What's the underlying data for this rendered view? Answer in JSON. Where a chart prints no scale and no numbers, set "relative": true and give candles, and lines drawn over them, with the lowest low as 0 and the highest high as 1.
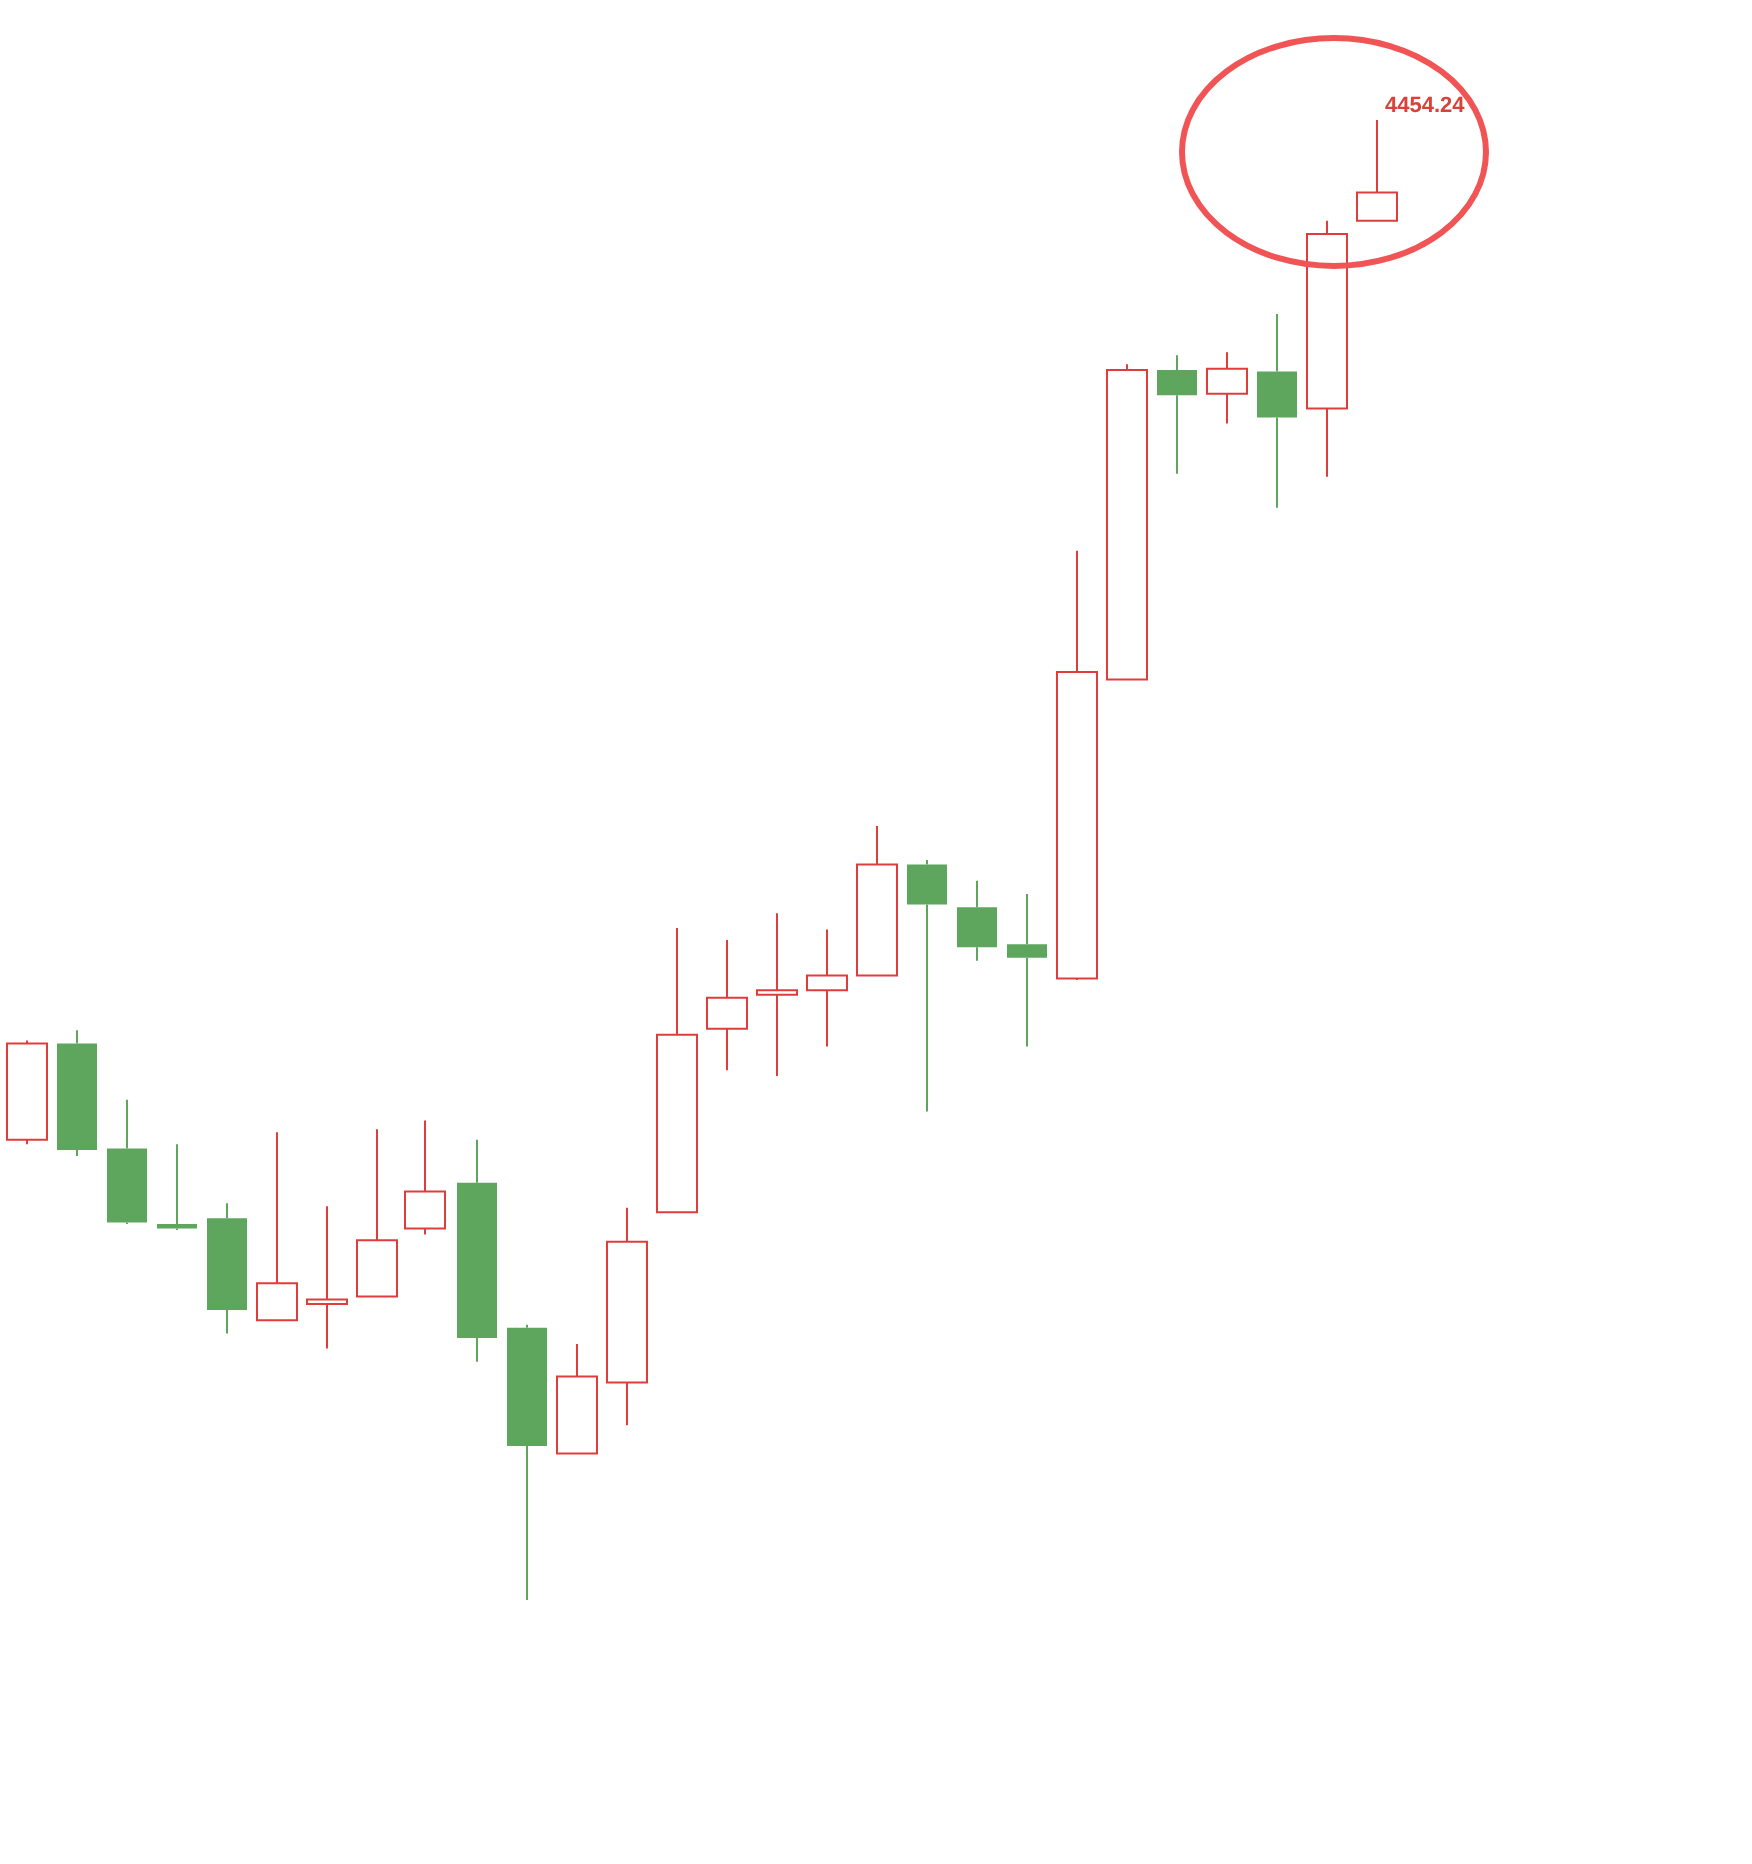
{
  "chart_data": {
    "type": "candlestick",
    "relative": true,
    "categories": [
      null,
      null,
      null,
      null,
      null,
      null,
      null,
      null,
      null,
      null,
      null,
      null,
      null,
      null,
      null,
      null,
      null,
      null,
      null,
      null,
      null,
      null,
      null,
      null,
      null,
      null,
      null,
      null
    ],
    "ohlc": [
      [
        0.311,
        0.378,
        0.308,
        0.376
      ],
      [
        0.376,
        0.385,
        0.3,
        0.304
      ],
      [
        0.305,
        0.338,
        0.254,
        0.255
      ],
      [
        0.254,
        0.308,
        0.25,
        0.251
      ],
      [
        0.258,
        0.268,
        0.18,
        0.196
      ],
      [
        0.189,
        0.316,
        0.189,
        0.214
      ],
      [
        0.2,
        0.266,
        0.17,
        0.203
      ],
      [
        0.205,
        0.318,
        0.205,
        0.243
      ],
      [
        0.251,
        0.324,
        0.247,
        0.276
      ],
      [
        0.282,
        0.311,
        0.161,
        0.177
      ],
      [
        0.184,
        0.186,
        0.0,
        0.104
      ],
      [
        0.099,
        0.173,
        0.099,
        0.151
      ],
      [
        0.147,
        0.265,
        0.118,
        0.242
      ],
      [
        0.262,
        0.454,
        0.262,
        0.382
      ],
      [
        0.386,
        0.446,
        0.358,
        0.407
      ],
      [
        0.409,
        0.464,
        0.354,
        0.412
      ],
      [
        0.412,
        0.453,
        0.374,
        0.422
      ],
      [
        0.422,
        0.523,
        0.422,
        0.497
      ],
      [
        0.497,
        0.5,
        0.33,
        0.47
      ],
      [
        0.468,
        0.486,
        0.432,
        0.441
      ],
      [
        0.443,
        0.477,
        0.374,
        0.434
      ],
      [
        0.42,
        0.709,
        0.419,
        0.627
      ],
      [
        0.622,
        0.835,
        0.622,
        0.831
      ],
      [
        0.831,
        0.841,
        0.761,
        0.814
      ],
      [
        0.815,
        0.843,
        0.795,
        0.832
      ],
      [
        0.83,
        0.869,
        0.738,
        0.799
      ],
      [
        0.805,
        0.932,
        0.759,
        0.923
      ],
      [
        0.932,
        1,
        0.932,
        0.951
      ]
    ],
    "colors": [
      "#e03c3c",
      "#5ea65e",
      "#5ea65e",
      "#5ea65e",
      "#5ea65e",
      "#e03c3c",
      "#e03c3c",
      "#e03c3c",
      "#e03c3c",
      "#5ea65e",
      "#5ea65e",
      "#e03c3c",
      "#e03c3c",
      "#e03c3c",
      "#e03c3c",
      "#e03c3c",
      "#e03c3c",
      "#e03c3c",
      "#5ea65e",
      "#5ea65e",
      "#5ea65e",
      "#e03c3c",
      "#e03c3c",
      "#5ea65e",
      "#e03c3c",
      "#5ea65e",
      "#e03c3c",
      "#e03c3c"
    ],
    "annotations": [
      "4454.24"
    ]
  }
}
